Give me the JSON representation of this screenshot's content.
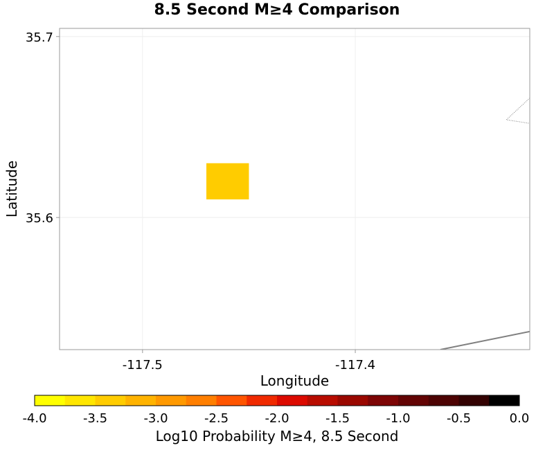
{
  "title": "8.5 Second M≥4 Comparison",
  "map": {
    "xlabel": "Longitude",
    "ylabel": "Latitude",
    "xlim": [
      -117.539,
      -117.318
    ],
    "ylim": [
      35.527,
      35.7045
    ],
    "x_ticks": [
      {
        "value": -117.5,
        "label": "-117.5"
      },
      {
        "value": -117.4,
        "label": "-117.4"
      }
    ],
    "y_ticks": [
      {
        "value": 35.6,
        "label": "35.6"
      },
      {
        "value": 35.7,
        "label": "35.7"
      }
    ],
    "cells": [
      {
        "lon": [
          -117.47,
          -117.45
        ],
        "lat": [
          35.61,
          35.63
        ],
        "log10_prob": -3.0,
        "color": "#ffcc00"
      }
    ],
    "boundary_lines": [
      {
        "style": "solid",
        "color": "#7f7f7f",
        "points": [
          [
            -117.36,
            35.527
          ],
          [
            -117.318,
            35.537
          ]
        ]
      },
      {
        "style": "dotted",
        "color": "#808080",
        "points": [
          [
            -117.318,
            35.666
          ],
          [
            -117.329,
            35.654
          ],
          [
            -117.318,
            35.652
          ]
        ]
      }
    ]
  },
  "colorbar": {
    "label": "Log10 Probability M≥4, 8.5 Second",
    "range": [
      -4.0,
      0.0
    ],
    "tick_labels": [
      "-4.0",
      "-3.5",
      "-3.0",
      "-2.5",
      "-2.0",
      "-1.5",
      "-1.0",
      "-0.5",
      "0.0"
    ],
    "colors": [
      "#ffff00",
      "#ffe600",
      "#ffcc00",
      "#ffb300",
      "#ff9900",
      "#ff7f00",
      "#ff5500",
      "#f02a00",
      "#dc0a00",
      "#b80c00",
      "#9a0800",
      "#7d0505",
      "#630404",
      "#4d0303",
      "#330202",
      "#000000"
    ]
  }
}
